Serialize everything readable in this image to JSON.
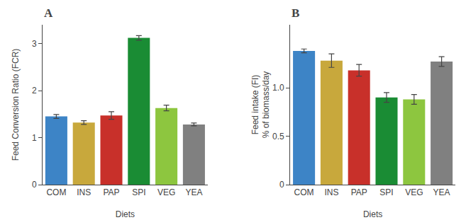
{
  "chart_data": [
    {
      "type": "bar",
      "annotations": [
        "A"
      ],
      "xlabel": "Diets",
      "ylabel": "Feed Conversion Ratio (FCR)",
      "categories": [
        "COM",
        "INS",
        "PAP",
        "SPI",
        "VEG",
        "YEA"
      ],
      "values": [
        1.45,
        1.32,
        1.47,
        3.12,
        1.63,
        1.28
      ],
      "errors": [
        0.04,
        0.04,
        0.08,
        0.05,
        0.06,
        0.03
      ],
      "colors": [
        "#3d84c6",
        "#c8a83c",
        "#c8302a",
        "#1a8c34",
        "#8dc63f",
        "#808080"
      ],
      "ylim": [
        0,
        3.4
      ],
      "yticks": [
        0,
        1,
        2,
        3
      ],
      "grid": false
    },
    {
      "type": "bar",
      "annotations": [
        "B"
      ],
      "xlabel": "Diets",
      "ylabel": "Feed intake (FI)\n% of biomass/day",
      "categories": [
        "COM",
        "INS",
        "PAP",
        "SPI",
        "VEG",
        "YEA"
      ],
      "values": [
        1.38,
        1.28,
        1.18,
        0.9,
        0.88,
        1.27
      ],
      "errors": [
        0.02,
        0.07,
        0.06,
        0.05,
        0.05,
        0.05
      ],
      "colors": [
        "#3d84c6",
        "#c8a83c",
        "#c8302a",
        "#1a8c34",
        "#8dc63f",
        "#808080"
      ],
      "ylim": [
        0,
        1.65
      ],
      "yticks": [
        0,
        0.5,
        {
          "value": 1,
          "label": "1.0"
        }
      ],
      "grid": false
    }
  ]
}
